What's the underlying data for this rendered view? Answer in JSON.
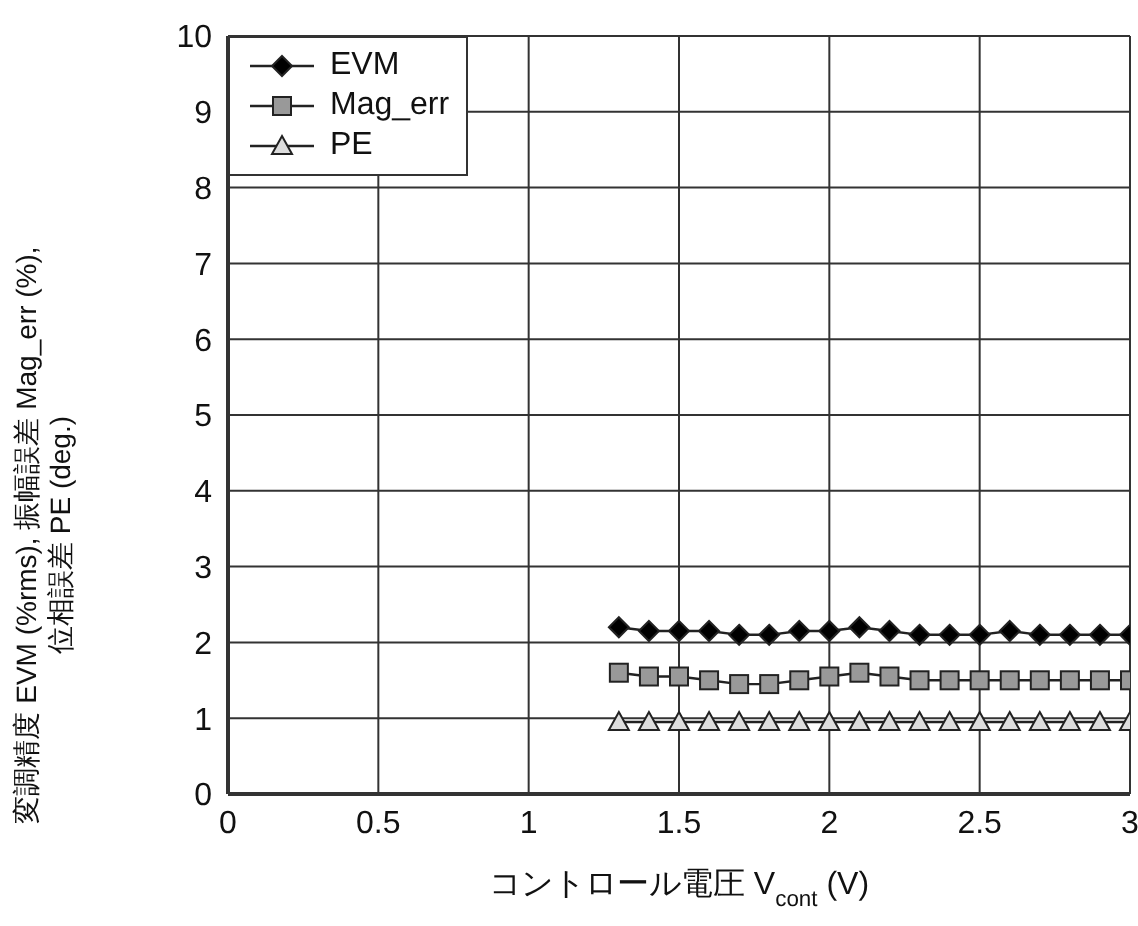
{
  "chart_data": {
    "type": "line",
    "xlabel": "コントロール電圧 V$_{cont}$ (V)",
    "ylabel": "変調精度 EVM (%rms), 振幅誤差 Mag_err (%),\n位相誤差 PE (deg.)",
    "x": [
      1.3,
      1.4,
      1.5,
      1.6,
      1.7,
      1.8,
      1.9,
      2.0,
      2.1,
      2.2,
      2.3,
      2.4,
      2.5,
      2.6,
      2.7,
      2.8,
      2.9,
      3.0
    ],
    "series": [
      {
        "name": "EVM",
        "color": "#000000",
        "marker": "diamond",
        "values": [
          2.2,
          2.15,
          2.15,
          2.15,
          2.1,
          2.1,
          2.15,
          2.15,
          2.2,
          2.15,
          2.1,
          2.1,
          2.1,
          2.15,
          2.1,
          2.1,
          2.1,
          2.1
        ]
      },
      {
        "name": "Mag_err",
        "color": "#999999",
        "marker": "square",
        "values": [
          1.6,
          1.55,
          1.55,
          1.5,
          1.45,
          1.45,
          1.5,
          1.55,
          1.6,
          1.55,
          1.5,
          1.5,
          1.5,
          1.5,
          1.5,
          1.5,
          1.5,
          1.5
        ]
      },
      {
        "name": "PE",
        "color": "#dddddd",
        "marker": "triangle",
        "values": [
          0.95,
          0.95,
          0.95,
          0.95,
          0.95,
          0.95,
          0.95,
          0.95,
          0.95,
          0.95,
          0.95,
          0.95,
          0.95,
          0.95,
          0.95,
          0.95,
          0.95,
          0.95
        ]
      }
    ],
    "xlim": [
      0,
      3
    ],
    "xticks": [
      0,
      0.5,
      1,
      1.5,
      2,
      2.5,
      3
    ],
    "ylim": [
      0,
      10
    ],
    "yticks": [
      0,
      1,
      2,
      3,
      4,
      5,
      6,
      7,
      8,
      9,
      10
    ],
    "grid": true,
    "legend": "top left",
    "line_style": "solid"
  }
}
